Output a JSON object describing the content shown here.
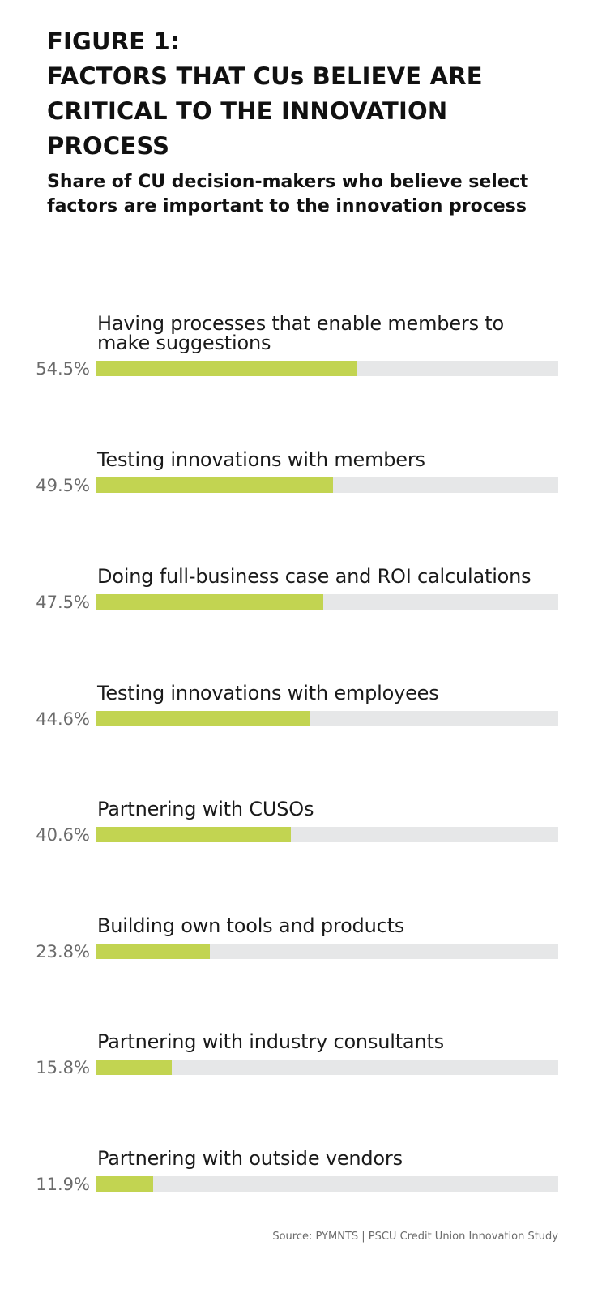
{
  "header": {
    "title_lines": [
      "FIGURE 1:",
      "FACTORS THAT CUs BELIEVE ARE",
      "CRITICAL TO THE INNOVATION",
      "PROCESS"
    ],
    "subtitle": "Share of CU decision-makers who believe select factors are important to the innovation process"
  },
  "colors": {
    "bar": "#c2d451",
    "track": "#e6e7e8",
    "value_text": "#6b6b6b"
  },
  "rows": [
    {
      "label": "Having processes that enable members to make suggestions",
      "value_label": "54.5%",
      "value": 54.5
    },
    {
      "label": "Testing innovations with members",
      "value_label": "49.5%",
      "value": 49.5
    },
    {
      "label": "Doing full-business case and ROI calculations",
      "value_label": "47.5%",
      "value": 47.5
    },
    {
      "label": "Testing innovations with employees",
      "value_label": "44.6%",
      "value": 44.6
    },
    {
      "label": "Partnering with CUSOs",
      "value_label": "40.6%",
      "value": 40.6
    },
    {
      "label": "Building own tools and products",
      "value_label": "23.8%",
      "value": 23.8
    },
    {
      "label": "Partnering with industry consultants",
      "value_label": "15.8%",
      "value": 15.8
    },
    {
      "label": "Partnering with outside vendors",
      "value_label": "11.9%",
      "value": 11.9
    }
  ],
  "source": "Source: PYMNTS | PSCU Credit Union Innovation Study",
  "chart_data": {
    "type": "bar",
    "orientation": "horizontal",
    "title": "FIGURE 1: FACTORS THAT CUs BELIEVE ARE CRITICAL TO THE INNOVATION PROCESS",
    "subtitle": "Share of CU decision-makers who believe select factors are important to the innovation process",
    "categories": [
      "Having processes that enable members to make suggestions",
      "Testing innovations with members",
      "Doing full-business case and ROI calculations",
      "Testing innovations with employees",
      "Partnering with CUSOs",
      "Building own tools and products",
      "Partnering with industry consultants",
      "Partnering with outside vendors"
    ],
    "values": [
      54.5,
      49.5,
      47.5,
      44.6,
      40.6,
      23.8,
      15.8,
      11.9
    ],
    "unit": "%",
    "xlabel": "",
    "ylabel": "",
    "xlim": [
      0,
      100
    ],
    "grid": false,
    "legend": null,
    "source": "Source: PYMNTS | PSCU Credit Union Innovation Study"
  }
}
